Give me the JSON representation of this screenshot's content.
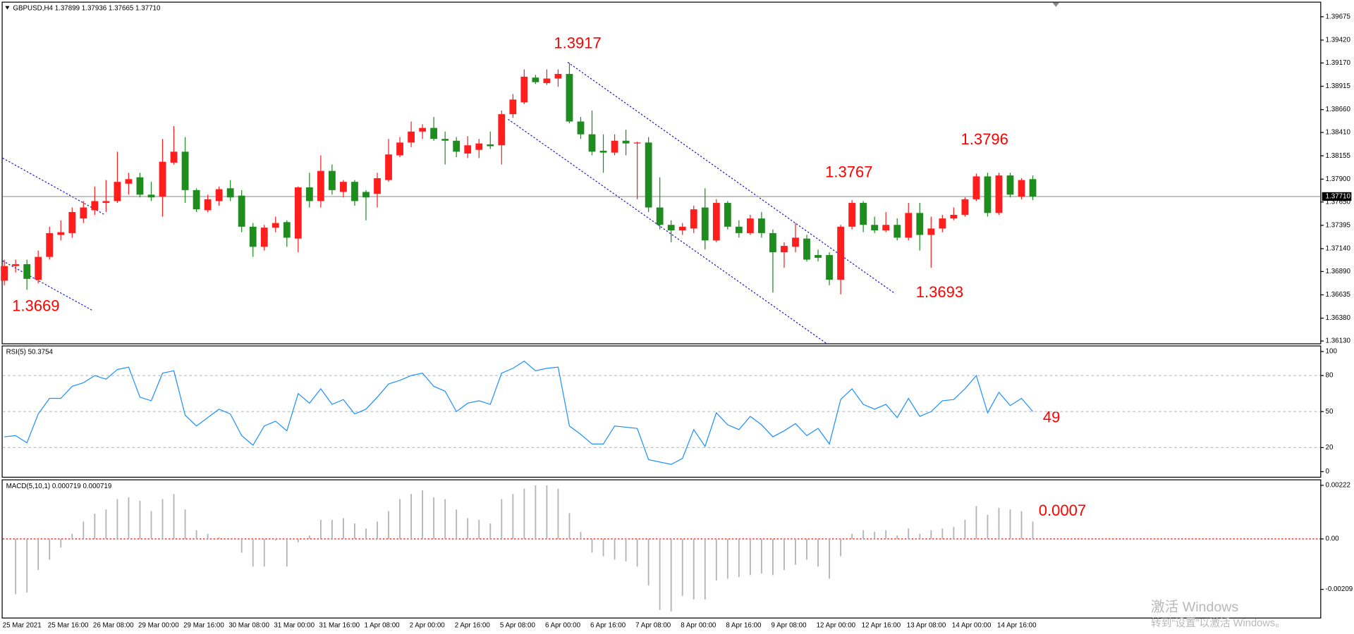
{
  "chart_data": [
    {
      "type": "candlestick",
      "title": "GBPUSD,H4  1.37899 1.37936 1.37665 1.37710",
      "categories": [
        "25 Mar 2021",
        null,
        null,
        null,
        "25 Mar 16:00",
        null,
        null,
        null,
        "26 Mar 08:00",
        null,
        null,
        null,
        "29 Mar 00:00",
        null,
        null,
        null,
        "29 Mar 16:00",
        null,
        null,
        null,
        "30 Mar 08:00",
        null,
        null,
        null,
        "31 Mar 00:00",
        null,
        null,
        null,
        "31 Mar 16:00",
        null,
        null,
        null,
        "1 Apr 08:00",
        null,
        null,
        null,
        "2 Apr 00:00",
        null,
        null,
        null,
        "2 Apr 16:00",
        null,
        null,
        null,
        "5 Apr 08:00",
        null,
        null,
        null,
        "6 Apr 00:00",
        null,
        null,
        null,
        "6 Apr 16:00",
        null,
        null,
        null,
        "7 Apr 08:00",
        null,
        null,
        null,
        "8 Apr 00:00",
        null,
        null,
        null,
        "8 Apr 16:00",
        null,
        null,
        null,
        "9 Apr 08:00",
        null,
        null,
        null,
        "12 Apr 00:00",
        null,
        null,
        null,
        "12 Apr 16:00",
        null,
        null,
        null,
        "13 Apr 08:00",
        null,
        null,
        null,
        "14 Apr 00:00",
        null,
        null,
        null,
        "14 Apr 16:00",
        null,
        null,
        null
      ],
      "open": [
        1.3679,
        1.3695,
        1.3697,
        1.368,
        1.3705,
        1.3729,
        1.3731,
        1.3747,
        1.3756,
        1.3764,
        1.3766,
        1.3785,
        1.3792,
        1.3773,
        1.3771,
        1.3808,
        1.382,
        1.3778,
        1.3756,
        1.3766,
        1.378,
        1.3772,
        1.3738,
        1.3716,
        1.3737,
        1.3743,
        1.3725,
        1.3781,
        1.3766,
        1.3799,
        1.3776,
        1.3787,
        1.3776,
        1.3774,
        1.3789,
        1.3816,
        1.383,
        1.3842,
        1.3846,
        1.3834,
        1.3832,
        1.3818,
        1.3822,
        1.3828,
        1.3827,
        1.3861,
        1.3874,
        1.3901,
        1.3895,
        1.39,
        1.3905,
        1.3853,
        1.3839,
        1.3821,
        1.3819,
        1.3832,
        1.3829,
        1.383,
        1.3759,
        1.374,
        1.3734,
        1.3736,
        1.3759,
        1.3723,
        1.3764,
        1.3738,
        1.3731,
        1.3747,
        1.3731,
        1.371,
        1.3716,
        1.3725,
        1.3707,
        1.3707,
        1.368,
        1.3738,
        1.3764,
        1.374,
        1.3734,
        1.374,
        1.3726,
        1.3753,
        1.3729,
        1.3736,
        1.3747,
        1.3751,
        1.3768,
        1.3793,
        1.3753,
        1.3794,
        1.3771,
        1.379
      ],
      "high": [
        1.3702,
        1.3702,
        1.3702,
        1.3712,
        1.3738,
        1.3745,
        1.3759,
        1.3766,
        1.3782,
        1.3789,
        1.382,
        1.3797,
        1.3797,
        1.3787,
        1.3834,
        1.3848,
        1.3836,
        1.378,
        1.3773,
        1.3782,
        1.3789,
        1.3778,
        1.3742,
        1.374,
        1.3749,
        1.3745,
        1.3782,
        1.3797,
        1.3816,
        1.3806,
        1.3789,
        1.3789,
        1.3778,
        1.3797,
        1.3834,
        1.3836,
        1.3853,
        1.385,
        1.3858,
        1.3842,
        1.3836,
        1.3837,
        1.3834,
        1.3842,
        1.3865,
        1.3883,
        1.391,
        1.3904,
        1.391,
        1.391,
        1.3917,
        1.3858,
        1.3865,
        1.3839,
        1.3839,
        1.3844,
        1.3831,
        1.3836,
        1.3792,
        1.3745,
        1.3742,
        1.3761,
        1.378,
        1.3768,
        1.3766,
        1.3745,
        1.3751,
        1.3754,
        1.3735,
        1.3721,
        1.3742,
        1.3729,
        1.3713,
        1.371,
        1.374,
        1.3767,
        1.3766,
        1.3749,
        1.3754,
        1.3747,
        1.3764,
        1.3764,
        1.3749,
        1.3751,
        1.3759,
        1.377,
        1.3796,
        1.3797,
        1.3797,
        1.3797,
        1.3791,
        1.3794
      ],
      "low": [
        1.3674,
        1.3688,
        1.3669,
        1.3676,
        1.3702,
        1.3723,
        1.3726,
        1.3742,
        1.3751,
        1.3754,
        1.3764,
        1.3773,
        1.377,
        1.3766,
        1.3749,
        1.3806,
        1.3764,
        1.3754,
        1.3754,
        1.3761,
        1.3766,
        1.3732,
        1.3705,
        1.3712,
        1.3732,
        1.3716,
        1.371,
        1.3759,
        1.3759,
        1.3773,
        1.377,
        1.3761,
        1.3745,
        1.3759,
        1.3787,
        1.3814,
        1.3825,
        1.3834,
        1.3832,
        1.3806,
        1.3814,
        1.3813,
        1.3813,
        1.3823,
        1.3806,
        1.3857,
        1.3872,
        1.3894,
        1.3893,
        1.3891,
        1.3851,
        1.3834,
        1.3816,
        1.3797,
        1.3816,
        1.3816,
        1.3768,
        1.3754,
        1.3735,
        1.3721,
        1.3729,
        1.3731,
        1.3713,
        1.3721,
        1.3735,
        1.3726,
        1.3729,
        1.3726,
        1.3666,
        1.3693,
        1.371,
        1.37,
        1.37,
        1.3674,
        1.3664,
        1.3735,
        1.3732,
        1.3731,
        1.3732,
        1.3723,
        1.3723,
        1.3712,
        1.3693,
        1.3732,
        1.3745,
        1.3749,
        1.3766,
        1.3749,
        1.3751,
        1.377,
        1.3768,
        1.3767
      ],
      "close": [
        1.3695,
        1.3697,
        1.3681,
        1.3705,
        1.3731,
        1.3732,
        1.3754,
        1.3759,
        1.3766,
        1.3766,
        1.3787,
        1.379,
        1.3773,
        1.377,
        1.3809,
        1.382,
        1.3778,
        1.3757,
        1.3768,
        1.3779,
        1.377,
        1.3738,
        1.3716,
        1.3737,
        1.3742,
        1.3726,
        1.3781,
        1.3766,
        1.3799,
        1.3778,
        1.3787,
        1.3766,
        1.377,
        1.3791,
        1.3817,
        1.383,
        1.3842,
        1.3846,
        1.3834,
        1.3832,
        1.382,
        1.3827,
        1.3829,
        1.3826,
        1.3861,
        1.3877,
        1.3902,
        1.3896,
        1.39,
        1.3905,
        1.3853,
        1.3839,
        1.382,
        1.3819,
        1.3832,
        1.3829,
        1.383,
        1.3759,
        1.374,
        1.3734,
        1.3738,
        1.3757,
        1.3723,
        1.3764,
        1.3738,
        1.3731,
        1.3747,
        1.3731,
        1.371,
        1.3717,
        1.3726,
        1.3702,
        1.3704,
        1.368,
        1.3738,
        1.3764,
        1.374,
        1.3734,
        1.374,
        1.3726,
        1.3753,
        1.3729,
        1.3736,
        1.3747,
        1.3751,
        1.3768,
        1.3793,
        1.3753,
        1.3794,
        1.3773,
        1.3789,
        1.3771
      ],
      "up_color": "#ff1e1e",
      "down_color": "#1e8c1e",
      "ylim": [
        1.361,
        1.3983
      ],
      "yticks": [
        {
          "value": 1.3613,
          "label": "1.36130"
        },
        {
          "value": 1.3638,
          "label": "1.36380"
        },
        {
          "value": 1.36635,
          "label": "1.36635"
        },
        {
          "value": 1.3689,
          "label": "1.36890"
        },
        {
          "value": 1.3714,
          "label": "1.37140"
        },
        {
          "value": 1.37395,
          "label": "1.37395"
        },
        {
          "value": 1.3765,
          "label": "1.37650"
        },
        {
          "value": 1.379,
          "label": "1.37900"
        },
        {
          "value": 1.38155,
          "label": "1.38155"
        },
        {
          "value": 1.3841,
          "label": "1.38410"
        },
        {
          "value": 1.3866,
          "label": "1.38660"
        },
        {
          "value": 1.38915,
          "label": "1.38915"
        },
        {
          "value": 1.3917,
          "label": "1.39170"
        },
        {
          "value": 1.3942,
          "label": "1.39420"
        },
        {
          "value": 1.39675,
          "label": "1.39675"
        }
      ],
      "last_price": {
        "value": 1.3771,
        "label": "1.37710"
      },
      "annotations": [
        "1.3917",
        "1.3669",
        "1.3767",
        "1.3693",
        "1.3796"
      ],
      "watermark": [
        "激活 Windows",
        "转到“设置”以激活 Windows。"
      ]
    },
    {
      "type": "line",
      "title": "RSI(5) 50.3754",
      "values": [
        29,
        30,
        24,
        48,
        61,
        61,
        71,
        74,
        80,
        77,
        85,
        87,
        62,
        59,
        82,
        84,
        47,
        38,
        45,
        52,
        48,
        30,
        22,
        38,
        42,
        34,
        65,
        57,
        69,
        56,
        60,
        48,
        52,
        62,
        73,
        76,
        80,
        82,
        71,
        67,
        50,
        57,
        59,
        56,
        82,
        86,
        92,
        84,
        86,
        87,
        38,
        31,
        23,
        23,
        38,
        37,
        36,
        10,
        8,
        6,
        11,
        35,
        21,
        49,
        39,
        35,
        46,
        39,
        29,
        34,
        40,
        30,
        36,
        23,
        60,
        69,
        56,
        52,
        56,
        45,
        61,
        46,
        50,
        59,
        60,
        69,
        80,
        49,
        66,
        55,
        61,
        50
      ],
      "color": "#1e90ff",
      "ylim": [
        -4.3,
        104.3
      ],
      "yticks": [
        0,
        20,
        50,
        80,
        100
      ],
      "levels": [
        20,
        50,
        80
      ],
      "annotations": [
        "49"
      ]
    },
    {
      "type": "bar",
      "title": "MACD(5,10,1) 0.000719 0.000719",
      "values": [
        null,
        -0.00229,
        -0.00222,
        -0.00129,
        -0.00086,
        -0.00036,
        0.00021,
        0.00072,
        0.00104,
        0.00122,
        0.00165,
        0.00172,
        0.00158,
        0.00115,
        0.00165,
        0.00186,
        0.00122,
        0.00036,
        0.00021,
        7e-05,
        1e-05,
        -0.00057,
        -0.00115,
        -0.00115,
        -7e-05,
        -0.00115,
        -0.00014,
        0.00014,
        0.00079,
        0.00079,
        0.00086,
        0.00064,
        0.00043,
        0.00072,
        0.00115,
        0.00165,
        0.00186,
        0.00201,
        0.00172,
        0.00165,
        0.00122,
        0.00086,
        0.00079,
        0.00064,
        0.00165,
        0.00186,
        0.00208,
        0.00222,
        0.00222,
        0.00208,
        0.00107,
        0.00029,
        -0.00057,
        -0.00072,
        -0.00086,
        -0.00093,
        -0.00115,
        -0.00193,
        -0.00294,
        -0.00301,
        -0.00236,
        -0.00251,
        -0.00251,
        -0.00172,
        -0.00165,
        -0.00158,
        -0.0015,
        -0.00143,
        -0.0015,
        -0.00129,
        -0.00107,
        -0.00086,
        -0.00115,
        -0.00165,
        -0.00072,
        0.00021,
        0.00036,
        0.00029,
        0.00036,
        0.00014,
        0.00043,
        0.00021,
        0.00036,
        0.00043,
        0.0005,
        0.00079,
        0.00136,
        0.001,
        0.00129,
        0.00122,
        0.00115,
        0.00072
      ],
      "color": "#b4b4b4",
      "zero_color": "#ff0000",
      "ylim": [
        -0.00326,
        0.00243
      ],
      "yticks": [
        0.00222,
        {
          "value": 0,
          "label": "0.00"
        },
        -0.00209
      ],
      "annotations": [
        "0.0007"
      ]
    }
  ]
}
